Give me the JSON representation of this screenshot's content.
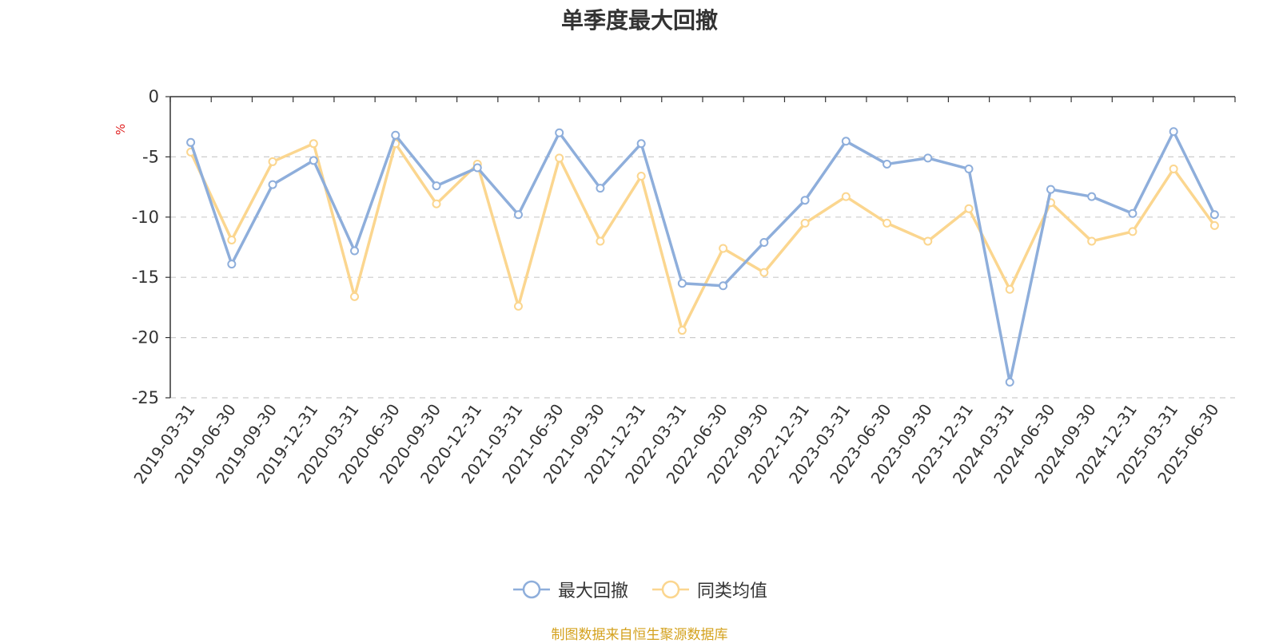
{
  "chart_data": {
    "type": "line",
    "title": "单季度最大回撤",
    "ylabel": "%",
    "xlabel": "",
    "ylim": [
      -25,
      0
    ],
    "yticks": [
      0,
      -5,
      -10,
      -15,
      -20,
      -25
    ],
    "grid": true,
    "legend_position": "bottom",
    "x": [
      "2019-03-31",
      "2019-06-30",
      "2019-09-30",
      "2019-12-31",
      "2020-03-31",
      "2020-06-30",
      "2020-09-30",
      "2020-12-31",
      "2021-03-31",
      "2021-06-30",
      "2021-09-30",
      "2021-12-31",
      "2022-03-31",
      "2022-06-30",
      "2022-09-30",
      "2022-12-31",
      "2023-03-31",
      "2023-06-30",
      "2023-09-30",
      "2023-12-31",
      "2024-03-31",
      "2024-06-30",
      "2024-09-30",
      "2024-12-31",
      "2025-03-31",
      "2025-06-30"
    ],
    "series": [
      {
        "name": "最大回撤",
        "color": "#8eaedb",
        "values": [
          -3.8,
          -13.9,
          -7.3,
          -5.3,
          -12.8,
          -3.2,
          -7.4,
          -5.9,
          -9.8,
          -3.0,
          -7.6,
          -3.9,
          -15.5,
          -15.7,
          -12.1,
          -8.6,
          -3.7,
          -5.6,
          -5.1,
          -6.0,
          -23.7,
          -7.7,
          -8.3,
          -9.7,
          -2.9,
          -9.8
        ]
      },
      {
        "name": "同类均值",
        "color": "#fbd68f",
        "values": [
          -4.6,
          -11.9,
          -5.4,
          -3.9,
          -16.6,
          -3.9,
          -8.9,
          -5.6,
          -17.4,
          -5.1,
          -12.0,
          -6.6,
          -19.4,
          -12.6,
          -14.6,
          -10.5,
          -8.3,
          -10.5,
          -12.0,
          -9.3,
          -16.0,
          -8.8,
          -12.0,
          -11.2,
          -6.0,
          -10.7
        ]
      }
    ]
  },
  "source_note": "制图数据来自恒生聚源数据库"
}
